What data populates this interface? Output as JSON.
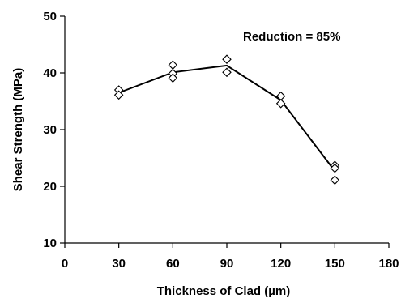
{
  "chart_data": {
    "type": "scatter",
    "xlabel": "Thickness of Clad (µm)",
    "ylabel": "Shear Strength (MPa)",
    "xlim": [
      0,
      180
    ],
    "ylim": [
      10,
      50
    ],
    "xticks": [
      0,
      30,
      60,
      90,
      120,
      150,
      180
    ],
    "yticks": [
      10,
      20,
      30,
      40,
      50
    ],
    "grid": false,
    "annotation": "Reduction = 85%",
    "colors": {
      "marker": "#000000",
      "line": "#000000"
    },
    "series": [
      {
        "marker": "diamond-open",
        "points": [
          {
            "x": 30,
            "y": 37.0
          },
          {
            "x": 30,
            "y": 36.1
          },
          {
            "x": 60,
            "y": 41.4
          },
          {
            "x": 60,
            "y": 39.9
          },
          {
            "x": 60,
            "y": 39.1
          },
          {
            "x": 90,
            "y": 42.4
          },
          {
            "x": 90,
            "y": 40.1
          },
          {
            "x": 120,
            "y": 35.9
          },
          {
            "x": 120,
            "y": 34.6
          },
          {
            "x": 150,
            "y": 23.7
          },
          {
            "x": 150,
            "y": 23.2
          },
          {
            "x": 150,
            "y": 21.1
          }
        ]
      },
      {
        "style": "line",
        "points": [
          {
            "x": 30,
            "y": 36.5
          },
          {
            "x": 60,
            "y": 40.1
          },
          {
            "x": 90,
            "y": 41.3
          },
          {
            "x": 120,
            "y": 35.2
          },
          {
            "x": 150,
            "y": 22.7
          }
        ]
      }
    ]
  }
}
